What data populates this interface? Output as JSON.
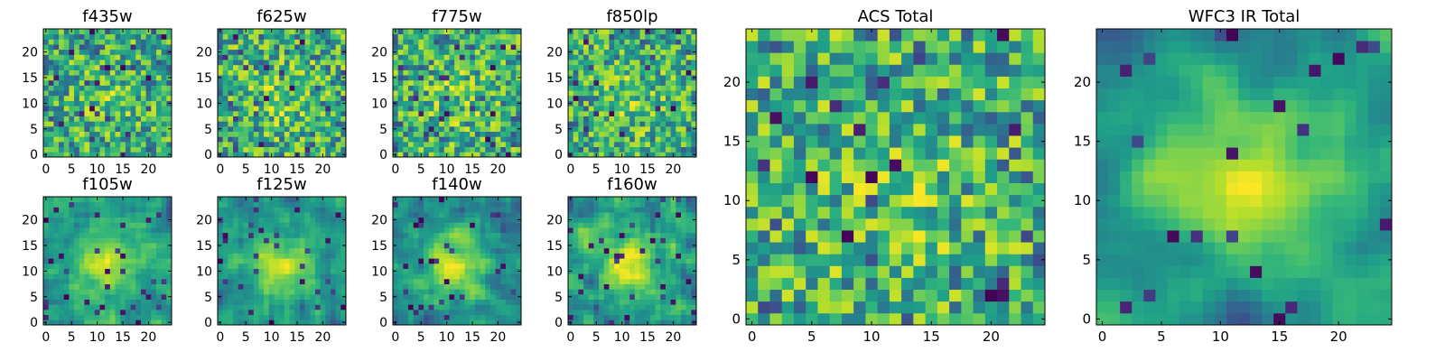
{
  "figure": {
    "description_colormap": "viridis",
    "grid_size": 25
  },
  "chart_data": [
    {
      "type": "heatmap",
      "id": "f435w",
      "title": "f435w",
      "seed": 11,
      "smooth": 0,
      "xticks": [
        0,
        5,
        10,
        15,
        20
      ],
      "yticks": [
        0,
        5,
        10,
        15,
        20
      ],
      "xlim": [
        0,
        25
      ],
      "ylim": [
        0,
        25
      ]
    },
    {
      "type": "heatmap",
      "id": "f625w",
      "title": "f625w",
      "seed": 23,
      "smooth": 0,
      "xticks": [
        0,
        5,
        10,
        15,
        20
      ],
      "yticks": [
        0,
        5,
        10,
        15,
        20
      ],
      "xlim": [
        0,
        25
      ],
      "ylim": [
        0,
        25
      ]
    },
    {
      "type": "heatmap",
      "id": "f775w",
      "title": "f775w",
      "seed": 37,
      "smooth": 0,
      "xticks": [
        0,
        5,
        10,
        15,
        20
      ],
      "yticks": [
        0,
        5,
        10,
        15,
        20
      ],
      "xlim": [
        0,
        25
      ],
      "ylim": [
        0,
        25
      ]
    },
    {
      "type": "heatmap",
      "id": "f850lp",
      "title": "f850lp",
      "seed": 41,
      "smooth": 0,
      "xticks": [
        0,
        5,
        10,
        15,
        20
      ],
      "yticks": [
        0,
        5,
        10,
        15,
        20
      ],
      "xlim": [
        0,
        25
      ],
      "ylim": [
        0,
        25
      ]
    },
    {
      "type": "heatmap",
      "id": "f105w",
      "title": "f105w",
      "seed": 53,
      "smooth": 1,
      "xticks": [
        0,
        5,
        10,
        15,
        20
      ],
      "yticks": [
        0,
        5,
        10,
        15,
        20
      ],
      "xlim": [
        0,
        25
      ],
      "ylim": [
        0,
        25
      ]
    },
    {
      "type": "heatmap",
      "id": "f125w",
      "title": "f125w",
      "seed": 67,
      "smooth": 1,
      "xticks": [
        0,
        5,
        10,
        15,
        20
      ],
      "yticks": [
        0,
        5,
        10,
        15,
        20
      ],
      "xlim": [
        0,
        25
      ],
      "ylim": [
        0,
        25
      ]
    },
    {
      "type": "heatmap",
      "id": "f140w",
      "title": "f140w",
      "seed": 71,
      "smooth": 1,
      "xticks": [
        0,
        5,
        10,
        15,
        20
      ],
      "yticks": [
        0,
        5,
        10,
        15,
        20
      ],
      "xlim": [
        0,
        25
      ],
      "ylim": [
        0,
        25
      ]
    },
    {
      "type": "heatmap",
      "id": "f160w",
      "title": "f160w",
      "seed": 83,
      "smooth": 1,
      "xticks": [
        0,
        5,
        10,
        15,
        20
      ],
      "yticks": [
        0,
        5,
        10,
        15,
        20
      ],
      "xlim": [
        0,
        25
      ],
      "ylim": [
        0,
        25
      ]
    },
    {
      "type": "heatmap",
      "id": "acs-total",
      "title": "ACS Total",
      "seed": 97,
      "smooth": 0,
      "xticks": [
        0,
        5,
        10,
        15,
        20
      ],
      "yticks": [
        0,
        5,
        10,
        15,
        20
      ],
      "xlim": [
        0,
        25
      ],
      "ylim": [
        0,
        25
      ]
    },
    {
      "type": "heatmap",
      "id": "wfc3-ir-total",
      "title": "WFC3 IR Total",
      "seed": 109,
      "smooth": 2,
      "xticks": [
        0,
        5,
        10,
        15,
        20
      ],
      "yticks": [
        0,
        5,
        10,
        15,
        20
      ],
      "xlim": [
        0,
        25
      ],
      "ylim": [
        0,
        25
      ]
    }
  ]
}
